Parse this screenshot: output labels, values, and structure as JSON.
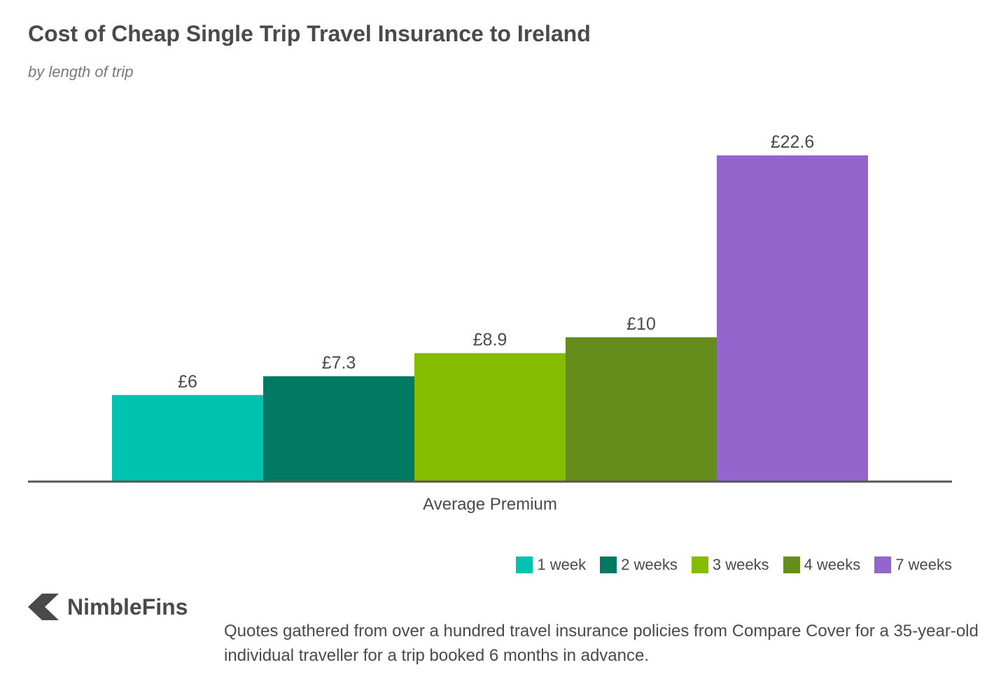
{
  "header": {
    "title": "Cost of Cheap Single Trip Travel Insurance to Ireland",
    "subtitle": "by length of trip"
  },
  "chart_data": {
    "type": "bar",
    "title": "Cost of Cheap Single Trip Travel Insurance to Ireland",
    "subtitle": "by length of trip",
    "categories": [
      "Average Premium"
    ],
    "xlabel": "",
    "ylabel": "",
    "ylim": [
      0,
      22.6
    ],
    "grid": false,
    "legend_position": "bottom-right",
    "series": [
      {
        "name": "1 week",
        "value": 6,
        "label": "£6",
        "color": "#00c2ae"
      },
      {
        "name": "2 weeks",
        "value": 7.3,
        "label": "£7.3",
        "color": "#027a63"
      },
      {
        "name": "3 weeks",
        "value": 8.9,
        "label": "£8.9",
        "color": "#84bd00"
      },
      {
        "name": "4 weeks",
        "value": 10,
        "label": "£10",
        "color": "#658d1b"
      },
      {
        "name": "7 weeks",
        "value": 22.6,
        "label": "£22.6",
        "color": "#9365cd"
      }
    ]
  },
  "legend": {
    "items": [
      {
        "label": "1 week",
        "color": "#00c2ae"
      },
      {
        "label": "2 weeks",
        "color": "#027a63"
      },
      {
        "label": "3 weeks",
        "color": "#84bd00"
      },
      {
        "label": "4 weeks",
        "color": "#658d1b"
      },
      {
        "label": "7 weeks",
        "color": "#9365cd"
      }
    ]
  },
  "brand": {
    "name": "NimbleFins",
    "logo_icon": "nimblefins-logo-icon"
  },
  "footnote": {
    "text": "Quotes gathered from over a hundred travel insurance policies from Compare Cover for a 35-year-old individual traveller for a trip booked 6 months in advance."
  }
}
